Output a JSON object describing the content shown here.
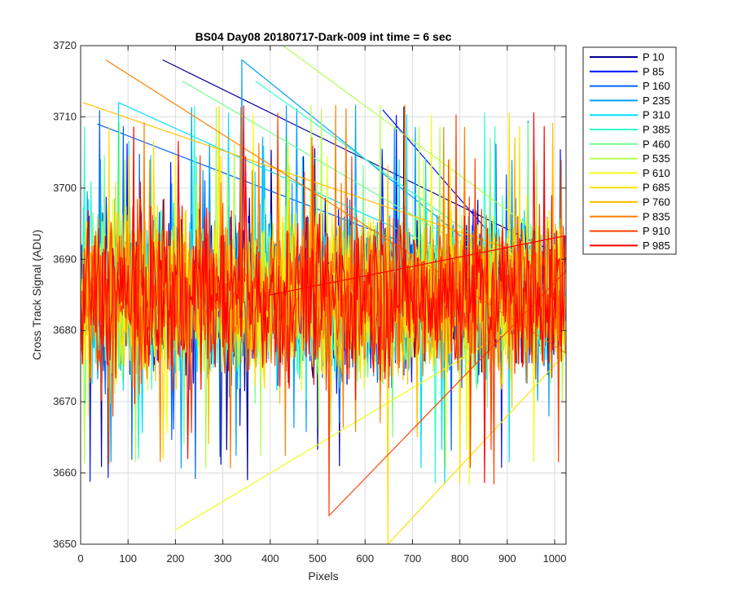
{
  "chart_data": {
    "type": "line",
    "title": "BS04 Day08 20180717-Dark-009 int time = 6 sec",
    "xlabel": "Pixels",
    "ylabel": "Cross Track Signal (ADU)",
    "xlim": [
      0,
      1024
    ],
    "ylim": [
      3650,
      3720
    ],
    "xticks": [
      0,
      100,
      200,
      300,
      400,
      500,
      600,
      700,
      800,
      900,
      1000
    ],
    "yticks": [
      3650,
      3660,
      3670,
      3680,
      3690,
      3700,
      3710,
      3720
    ],
    "grid": true,
    "legend_position": "outside-top-right",
    "series_profile": {
      "description": "noise around mean",
      "mean": 3685,
      "typical_range": [
        3668,
        3702
      ],
      "points": 1024
    },
    "series": [
      {
        "name": "P 10",
        "color": "#00008f",
        "peak": {
          "x": 173,
          "y": 3718
        }
      },
      {
        "name": "P 85",
        "color": "#0010ff",
        "peak": {
          "x": 637,
          "y": 3711
        }
      },
      {
        "name": "P 160",
        "color": "#0060ff",
        "peak": {
          "x": 35,
          "y": 3709
        }
      },
      {
        "name": "P 235",
        "color": "#00a0ff",
        "peak": {
          "x": 340,
          "y": 3718
        }
      },
      {
        "name": "P 310",
        "color": "#00dfff",
        "peak": {
          "x": 80,
          "y": 3712
        }
      },
      {
        "name": "P 385",
        "color": "#30ffcf",
        "peak": {
          "x": 369,
          "y": 3715
        }
      },
      {
        "name": "P 460",
        "color": "#70ff8f",
        "peak": {
          "x": 215,
          "y": 3715
        }
      },
      {
        "name": "P 535",
        "color": "#afff50",
        "peak": {
          "x": 427,
          "y": 3720
        }
      },
      {
        "name": "P 610",
        "color": "#efff10",
        "peak": {
          "x": 199,
          "y": 3652
        }
      },
      {
        "name": "P 685",
        "color": "#ffe000",
        "peak": {
          "x": 648,
          "y": 3650
        }
      },
      {
        "name": "P 760",
        "color": "#ffbf00",
        "peak": {
          "x": 5,
          "y": 3712
        }
      },
      {
        "name": "P 835",
        "color": "#ff7f00",
        "peak": {
          "x": 53,
          "y": 3718
        }
      },
      {
        "name": "P 910",
        "color": "#ff4000",
        "peak": {
          "x": 524,
          "y": 3654
        }
      },
      {
        "name": "P 985",
        "color": "#ff0000",
        "peak": {
          "x": 400,
          "y": 3685
        }
      }
    ]
  }
}
